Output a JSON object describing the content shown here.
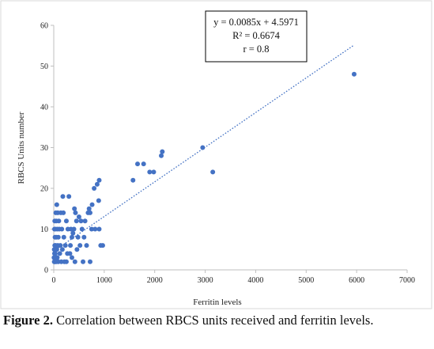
{
  "caption": {
    "label": "Figure 2.",
    "text": " Correlation between RBCS units received and ferritin levels."
  },
  "colors": {
    "point": "#4472c4",
    "trend": "#4472c4",
    "frame": "#d9d9d9",
    "axis": "#bfbfbf"
  },
  "chart_data": {
    "type": "scatter",
    "title": "",
    "xlabel": "Ferritin levels",
    "ylabel": "RBCS Units number",
    "xlim": [
      0,
      7000
    ],
    "ylim": [
      0,
      60
    ],
    "xticks": [
      0,
      1000,
      2000,
      3000,
      4000,
      5000,
      6000,
      7000
    ],
    "yticks": [
      0,
      10,
      20,
      30,
      40,
      50,
      60
    ],
    "grid": false,
    "legend": "none",
    "trendline": {
      "slope": 0.0085,
      "intercept": 4.5971,
      "x_range": [
        0,
        5950
      ],
      "equation": "y = 0.0085x + 4.5971",
      "r_squared": "R² = 0.6674",
      "r": "r = 0.8"
    },
    "series": [
      {
        "points": [
          [
            5950,
            48
          ],
          [
            3150,
            24
          ],
          [
            2950,
            30
          ],
          [
            2150,
            29
          ],
          [
            2130,
            28
          ],
          [
            1980,
            24
          ],
          [
            1900,
            24
          ],
          [
            1780,
            26
          ],
          [
            1660,
            26
          ],
          [
            1570,
            22
          ],
          [
            900,
            22
          ],
          [
            860,
            21
          ],
          [
            800,
            20
          ],
          [
            890,
            17
          ],
          [
            760,
            16
          ],
          [
            700,
            15
          ],
          [
            720,
            14
          ],
          [
            680,
            14
          ],
          [
            820,
            10
          ],
          [
            750,
            10
          ],
          [
            900,
            10
          ],
          [
            930,
            6
          ],
          [
            970,
            6
          ],
          [
            720,
            2
          ],
          [
            620,
            12
          ],
          [
            560,
            10
          ],
          [
            500,
            13
          ],
          [
            520,
            6
          ],
          [
            600,
            8
          ],
          [
            580,
            2
          ],
          [
            450,
            12
          ],
          [
            430,
            14
          ],
          [
            410,
            15
          ],
          [
            400,
            10
          ],
          [
            380,
            9
          ],
          [
            360,
            8
          ],
          [
            340,
            10
          ],
          [
            330,
            6
          ],
          [
            300,
            18
          ],
          [
            320,
            4
          ],
          [
            280,
            10
          ],
          [
            250,
            12
          ],
          [
            250,
            2
          ],
          [
            230,
            6
          ],
          [
            200,
            8
          ],
          [
            190,
            14
          ],
          [
            180,
            18
          ],
          [
            160,
            10
          ],
          [
            150,
            2
          ],
          [
            140,
            14
          ],
          [
            130,
            6
          ],
          [
            120,
            4
          ],
          [
            110,
            10
          ],
          [
            100,
            12
          ],
          [
            90,
            8
          ],
          [
            90,
            2
          ],
          [
            80,
            14
          ],
          [
            80,
            6
          ],
          [
            70,
            10
          ],
          [
            70,
            3
          ],
          [
            60,
            16
          ],
          [
            60,
            5
          ],
          [
            50,
            12
          ],
          [
            50,
            8
          ],
          [
            50,
            2
          ],
          [
            40,
            14
          ],
          [
            40,
            6
          ],
          [
            40,
            3
          ],
          [
            30,
            10
          ],
          [
            30,
            4
          ],
          [
            30,
            2
          ],
          [
            25,
            8
          ],
          [
            20,
            12
          ],
          [
            20,
            6
          ],
          [
            20,
            2
          ],
          [
            15,
            10
          ],
          [
            15,
            4
          ],
          [
            10,
            5
          ],
          [
            10,
            2
          ],
          [
            5,
            3
          ],
          [
            480,
            8
          ],
          [
            460,
            5
          ],
          [
            540,
            12
          ],
          [
            650,
            6
          ],
          [
            420,
            2
          ],
          [
            360,
            3
          ],
          [
            270,
            4
          ],
          [
            210,
            2
          ],
          [
            170,
            5
          ]
        ]
      }
    ]
  }
}
